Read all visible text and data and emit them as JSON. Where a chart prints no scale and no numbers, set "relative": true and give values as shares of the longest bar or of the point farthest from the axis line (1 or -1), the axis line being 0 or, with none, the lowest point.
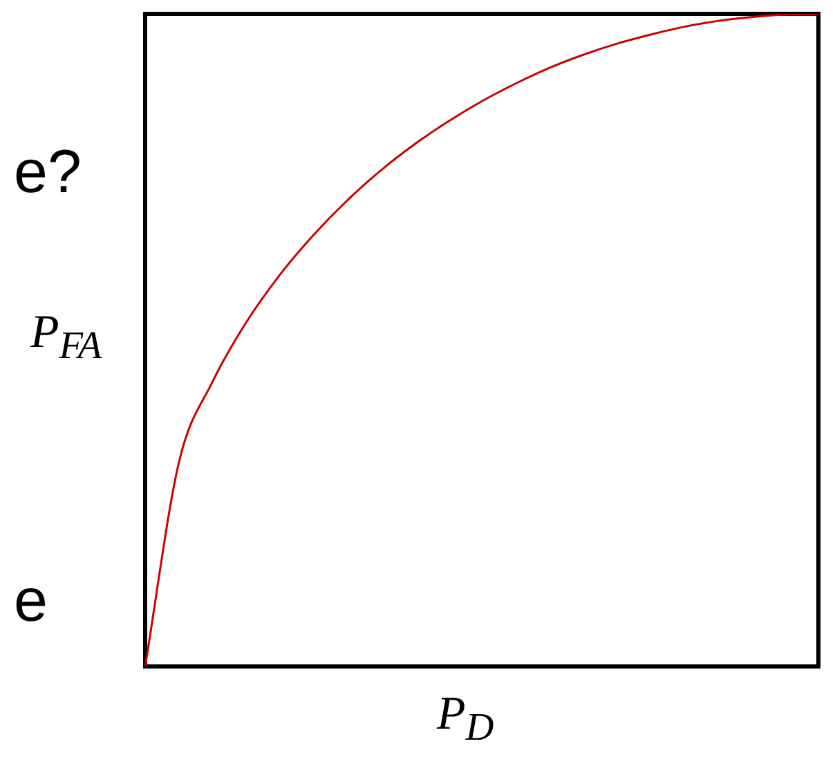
{
  "chart_data": {
    "type": "line",
    "relative": true,
    "marker": "none",
    "xlabel": "P$_{D}$",
    "ylabel": "P$_{FA}$",
    "annotations": [
      "e?",
      "e"
    ],
    "categories": [
      null,
      null,
      null,
      null,
      null,
      null,
      null,
      null,
      null,
      null,
      null,
      null,
      null,
      null,
      null,
      null,
      null,
      null,
      null,
      null,
      null
    ],
    "series": [
      {
        "color": "#cc0000",
        "values": [
          0,
          0.312,
          0.436,
          0.527,
          0.6,
          0.661,
          0.714,
          0.76,
          0.8,
          0.835,
          0.866,
          0.893,
          0.917,
          0.937,
          0.954,
          0.968,
          0.98,
          0.989,
          0.995,
          0.999,
          1
        ]
      }
    ]
  }
}
